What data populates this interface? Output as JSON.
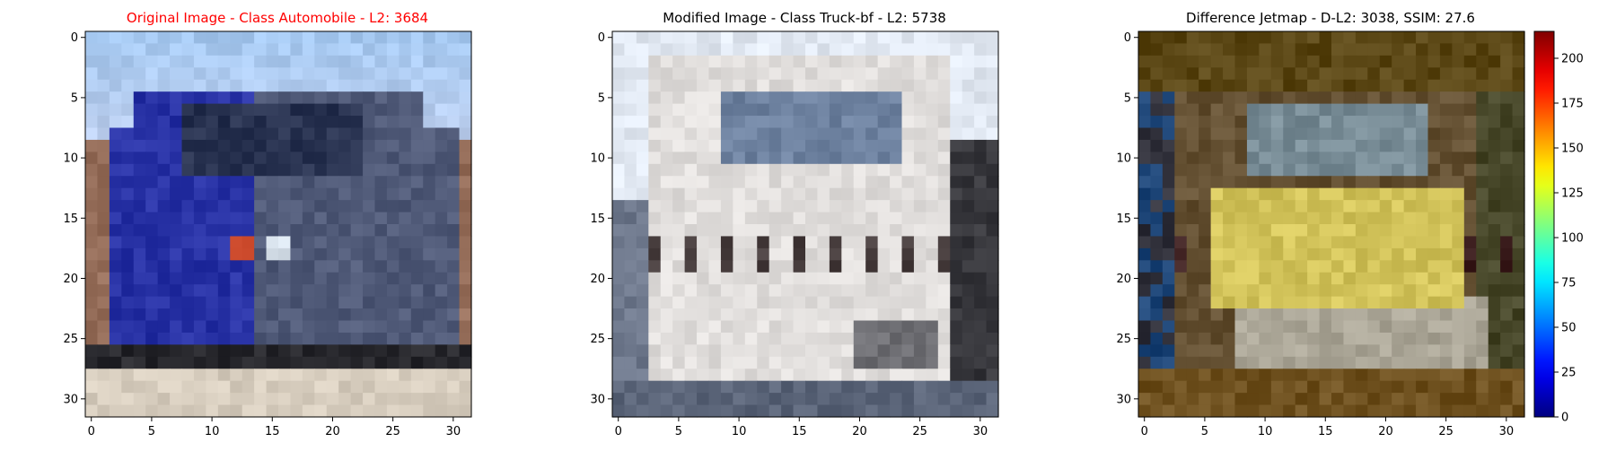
{
  "chart_data": [
    {
      "type": "heatmap",
      "title": "Original Image - Class Automobile - L2: 3684",
      "title_color": "#ff0000",
      "x_ticks": [
        0,
        5,
        10,
        15,
        20,
        25,
        30
      ],
      "y_ticks": [
        0,
        5,
        10,
        15,
        20,
        25,
        30
      ],
      "xlim": [
        -0.5,
        31.5
      ],
      "ylim": [
        31.5,
        -0.5
      ],
      "image_size": [
        32,
        32
      ],
      "content": "pixelated photo of a blue pickup truck under a light blue sky"
    },
    {
      "type": "heatmap",
      "title": "Modified Image - Class Truck-bf - L2: 5738",
      "title_color": "#000000",
      "x_ticks": [
        0,
        5,
        10,
        15,
        20,
        25,
        30
      ],
      "y_ticks": [
        0,
        5,
        10,
        15,
        20,
        25,
        30
      ],
      "xlim": [
        -0.5,
        31.5
      ],
      "ylim": [
        31.5,
        -0.5
      ],
      "image_size": [
        32,
        32
      ],
      "content": "pixelated photo of a white truck, front view"
    },
    {
      "type": "heatmap",
      "title": "Difference Jetmap - D-L2: 3038, SSIM: 27.6",
      "title_color": "#000000",
      "x_ticks": [
        0,
        5,
        10,
        15,
        20,
        25,
        30
      ],
      "y_ticks": [
        0,
        5,
        10,
        15,
        20,
        25,
        30
      ],
      "xlim": [
        -0.5,
        31.5
      ],
      "ylim": [
        31.5,
        -0.5
      ],
      "image_size": [
        32,
        32
      ],
      "content": "jet colormap difference overlay with yellow truck body",
      "colorbar": {
        "colormap": "jet",
        "range": [
          0,
          215
        ],
        "ticks": [
          0,
          25,
          50,
          75,
          100,
          125,
          150,
          175,
          200
        ]
      }
    }
  ]
}
